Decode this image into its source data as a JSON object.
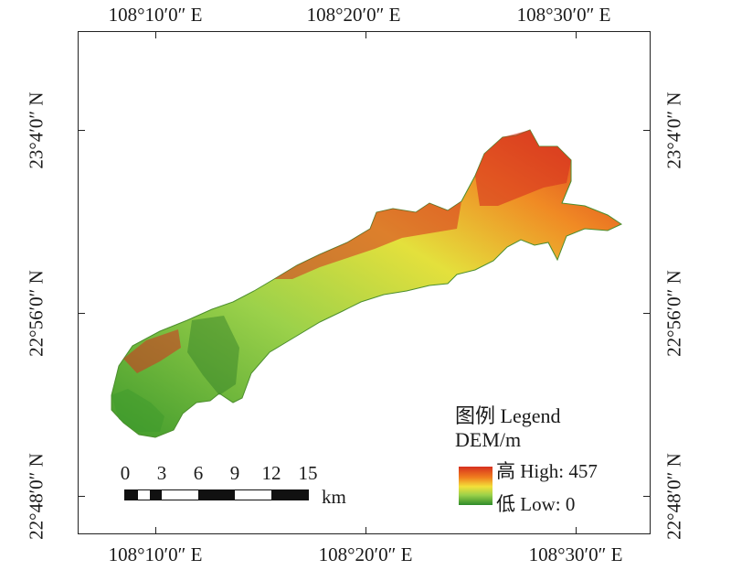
{
  "map": {
    "lon_labels_top": [
      "108°10′0″ E",
      "108°20′0″ E",
      "108°30′0″ E"
    ],
    "lon_labels_bottom": [
      "108°10′0″ E",
      "108°20′0″ E",
      "108°30′0″ E"
    ],
    "lat_labels_left": [
      "23°4′0″ N",
      "22°56′0″ N",
      "22°48′0″ N"
    ],
    "lat_labels_right": [
      "23°4′0″ N",
      "22°56′0″ N",
      "22°48′0″ N"
    ]
  },
  "legend": {
    "title_line1": "图例 Legend",
    "title_line2": "DEM/m",
    "high_label": "高 High: 457",
    "low_label": "低 Low: 0",
    "colors": [
      "#d7301f",
      "#f07e1e",
      "#f3e03a",
      "#9bd14a",
      "#2e8b2a"
    ]
  },
  "scalebar": {
    "ticks": [
      "0",
      "3",
      "6",
      "9",
      "12",
      "15"
    ],
    "unit": "km"
  }
}
